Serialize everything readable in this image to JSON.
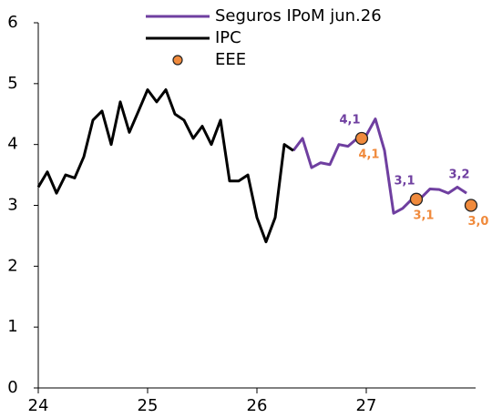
{
  "chart_data": {
    "type": "line",
    "xlim": [
      24,
      28
    ],
    "xticks": [
      24,
      25,
      26,
      27
    ],
    "ylim": [
      0,
      6
    ],
    "yticks": [
      0,
      1,
      2,
      3,
      4,
      5,
      6
    ],
    "legend": "top",
    "series": [
      {
        "name": "Seguros IPoM jun.26",
        "color": "#6f3fa0",
        "style": "line",
        "x": [
          26.333,
          26.417,
          26.5,
          26.583,
          26.667,
          26.75,
          26.833,
          26.917,
          27.0,
          27.083,
          27.167,
          27.25,
          27.333,
          27.417,
          27.5,
          27.583,
          27.667,
          27.75,
          27.833,
          27.917
        ],
        "values": [
          3.9,
          4.1,
          3.62,
          3.7,
          3.67,
          4.0,
          3.97,
          4.1,
          4.15,
          4.42,
          3.9,
          2.87,
          2.95,
          3.1,
          3.12,
          3.27,
          3.26,
          3.2,
          3.3,
          3.2
        ],
        "value_labels": [
          null,
          null,
          null,
          null,
          null,
          null,
          null,
          "4,1",
          null,
          null,
          null,
          null,
          null,
          "3,1",
          null,
          null,
          null,
          null,
          null,
          "3,2"
        ]
      },
      {
        "name": "IPC",
        "color": "#000000",
        "style": "line",
        "x": [
          24,
          24.083,
          24.167,
          24.25,
          24.333,
          24.417,
          24.5,
          24.583,
          24.667,
          24.75,
          24.833,
          24.917,
          25,
          25.083,
          25.167,
          25.25,
          25.333,
          25.417,
          25.5,
          25.583,
          25.667,
          25.75,
          25.833,
          25.917,
          26,
          26.083,
          26.167,
          26.25,
          26.333
        ],
        "values": [
          3.3,
          3.55,
          3.2,
          3.5,
          3.45,
          3.8,
          4.4,
          4.55,
          4.0,
          4.7,
          4.2,
          4.55,
          4.9,
          4.7,
          4.9,
          4.5,
          4.4,
          4.1,
          4.3,
          4.0,
          4.4,
          3.4,
          3.4,
          3.5,
          2.8,
          2.4,
          2.8,
          4.0,
          3.9
        ]
      },
      {
        "name": "EEE",
        "color": "#f08a3c",
        "style": "points",
        "x": [
          26.958,
          27.458,
          27.958
        ],
        "values": [
          4.1,
          3.1,
          3.0
        ],
        "value_labels": [
          "4,1",
          "3,1",
          "3,0"
        ]
      }
    ]
  }
}
